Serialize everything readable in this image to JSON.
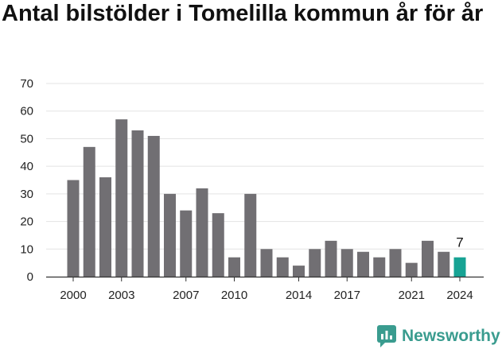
{
  "title": "Antal bilstölder i Tomelilla kommun år för år",
  "brand": {
    "name": "Newsworthy",
    "logo_icon": "newsworthy-logo-icon",
    "color": "#3a9c8f"
  },
  "colors": {
    "bar": "#716f73",
    "highlight": "#17a394",
    "grid": "#e3e3e3",
    "axis": "#333333"
  },
  "chart_data": {
    "type": "bar",
    "title": "Antal bilstölder i Tomelilla kommun år för år",
    "xlabel": "",
    "ylabel": "",
    "ylim": [
      0,
      70
    ],
    "yticks": [
      0,
      10,
      20,
      30,
      40,
      50,
      60,
      70
    ],
    "grid": true,
    "categories": [
      "2000",
      "2001",
      "2002",
      "2003",
      "2004",
      "2005",
      "2006",
      "2007",
      "2008",
      "2009",
      "2010",
      "2011",
      "2012",
      "2013",
      "2014",
      "2015",
      "2016",
      "2017",
      "2018",
      "2019",
      "2020",
      "2021",
      "2022",
      "2023",
      "2024"
    ],
    "xtick_labels": [
      "2000",
      "2003",
      "2007",
      "2010",
      "2014",
      "2017",
      "2021",
      "2024"
    ],
    "values": [
      35,
      47,
      36,
      57,
      53,
      51,
      30,
      24,
      32,
      23,
      7,
      30,
      10,
      7,
      4,
      10,
      13,
      10,
      9,
      7,
      10,
      5,
      13,
      9,
      7
    ],
    "highlight": {
      "category": "2024",
      "label": "7"
    }
  }
}
